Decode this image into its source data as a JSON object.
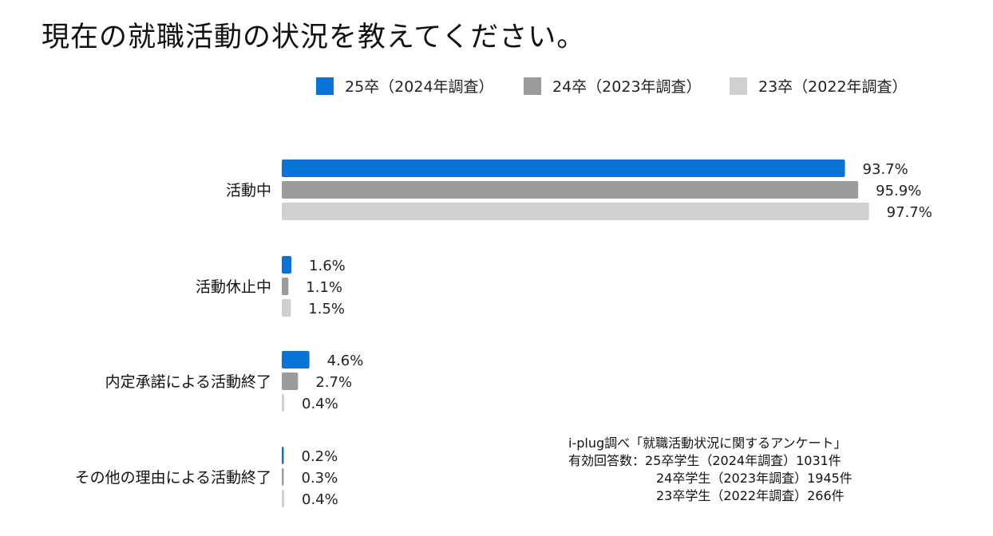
{
  "title": "現在の就職活動の状況を教えてください。",
  "chart_data": {
    "type": "bar",
    "orientation": "horizontal",
    "title": "現在の就職活動の状況を教えてください。",
    "unit": "%",
    "xlim": [
      0,
      100
    ],
    "categories": [
      "活動中",
      "活動休止中",
      "内定承諾による活動終了",
      "その他の理由による活動終了"
    ],
    "series": [
      {
        "name": "25卒（2024年調査）",
        "color": "#0a74d6",
        "values": [
          93.7,
          1.6,
          4.6,
          0.2
        ],
        "labels": [
          "93.7%",
          "1.6%",
          "4.6%",
          "0.2%"
        ]
      },
      {
        "name": "24卒（2023年調査）",
        "color": "#9b9b9b",
        "values": [
          95.9,
          1.1,
          2.7,
          0.3
        ],
        "labels": [
          "95.9%",
          "1.1%",
          "2.7%",
          "0.3%"
        ]
      },
      {
        "name": "23卒（2022年調査）",
        "color": "#d0d0d0",
        "values": [
          97.7,
          1.5,
          0.4,
          0.4
        ],
        "labels": [
          "97.7%",
          "1.5%",
          "0.4%",
          "0.4%"
        ]
      }
    ],
    "legend_position": "top",
    "grid": false
  },
  "source": {
    "line1": "i-plug調べ「就職活動状況に関するアンケート」",
    "line2": "有効回答数：25卒学生（2024年調査）1031件",
    "line3": "24卒学生（2023年調査）1945件",
    "line4": "23卒学生（2022年調査）266件"
  }
}
